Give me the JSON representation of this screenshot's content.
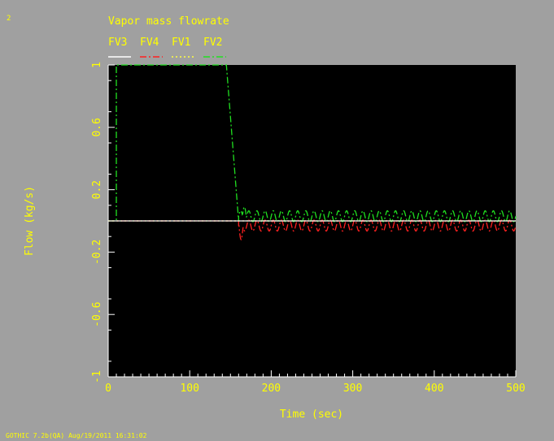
{
  "page": {
    "corner_label": "2",
    "footer": "GOTHIC 7.2b(QA) Aug/19/2011 16:31:02"
  },
  "colors": {
    "background": "#a0a0a0",
    "plot_background": "#000000",
    "text": "#ffff00",
    "FV3": "#ffffff",
    "FV4": "#ff2020",
    "FV1": "#ffff40",
    "FV2": "#20e020"
  },
  "chart_data": {
    "type": "line",
    "title": "Vapor mass flowrate",
    "xlabel": "Time (sec)",
    "ylabel": "Flow (kg/s)",
    "xlim": [
      0,
      500
    ],
    "ylim": [
      -1,
      1
    ],
    "xticks": [
      0,
      100,
      200,
      300,
      400,
      500
    ],
    "yticks": [
      -1,
      -0.6,
      -0.2,
      0.2,
      0.6,
      1
    ],
    "yticklabels": [
      "-1",
      "-0.6",
      "-0.2",
      "0.2",
      "0.6",
      "1"
    ],
    "grid": false,
    "legend_position": "top-left, above plot",
    "series": [
      {
        "name": "FV3",
        "style": "solid",
        "x": [
          0,
          500
        ],
        "y": [
          0,
          0
        ]
      },
      {
        "name": "FV4",
        "style": "dash-dot",
        "x": [
          0,
          160,
          500
        ],
        "y": [
          0,
          0,
          0
        ],
        "oscillation": {
          "start": 160,
          "end": 500,
          "center": -0.03,
          "amplitude": 0.035,
          "period": 10,
          "initial_dip": -0.12
        }
      },
      {
        "name": "FV1",
        "style": "dotted",
        "x": [
          0,
          500
        ],
        "y": [
          0,
          0
        ]
      },
      {
        "name": "FV2",
        "style": "dash-dot",
        "x": [
          0,
          10,
          10,
          145,
          160,
          500
        ],
        "y": [
          0,
          0,
          1,
          1,
          0,
          0
        ],
        "oscillation": {
          "start": 160,
          "end": 500,
          "center": 0.03,
          "amplitude": 0.035,
          "period": 10,
          "initial_peak": 0.09
        }
      }
    ]
  }
}
